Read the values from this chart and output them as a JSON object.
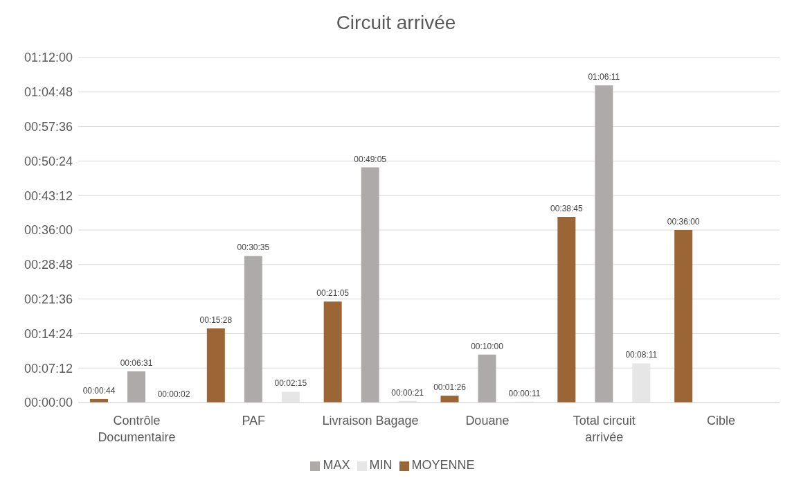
{
  "chart_data": {
    "type": "bar",
    "title": "Circuit arrivée",
    "categories": [
      "Contrôle Documentaire",
      "PAF",
      "Livraison Bagage",
      "Douane",
      "Total circuit arrivée",
      "Cible"
    ],
    "series": [
      {
        "name": "MOYENNE",
        "color": "#9c6535",
        "values": [
          44,
          928,
          1265,
          86,
          2325,
          2160
        ],
        "value_labels": [
          "00:00:44",
          "00:15:28",
          "00:21:05",
          "00:01:26",
          "00:38:45",
          "00:36:00"
        ]
      },
      {
        "name": "MAX",
        "color": "#aeaaaa",
        "values": [
          391,
          1835,
          2945,
          600,
          3971,
          null
        ],
        "value_labels": [
          "00:06:31",
          "00:30:35",
          "00:49:05",
          "00:10:00",
          "01:06:11",
          null
        ]
      },
      {
        "name": "MIN",
        "color": "#e7e6e6",
        "values": [
          2,
          135,
          21,
          11,
          491,
          null
        ],
        "value_labels": [
          "00:00:02",
          "00:02:15",
          "00:00:21",
          "00:00:11",
          "00:08:11",
          null
        ]
      }
    ],
    "ylim": [
      0,
      4320
    ],
    "yticks": [
      {
        "value": 0,
        "label": "00:00:00"
      },
      {
        "value": 432,
        "label": "00:07:12"
      },
      {
        "value": 864,
        "label": "00:14:24"
      },
      {
        "value": 1296,
        "label": "00:21:36"
      },
      {
        "value": 1728,
        "label": "00:28:48"
      },
      {
        "value": 2160,
        "label": "00:36:00"
      },
      {
        "value": 2592,
        "label": "00:43:12"
      },
      {
        "value": 3024,
        "label": "00:50:24"
      },
      {
        "value": 3456,
        "label": "00:57:36"
      },
      {
        "value": 3888,
        "label": "01:04:48"
      },
      {
        "value": 4320,
        "label": "01:12:00"
      }
    ],
    "grid": "y",
    "legend": "bottom"
  }
}
